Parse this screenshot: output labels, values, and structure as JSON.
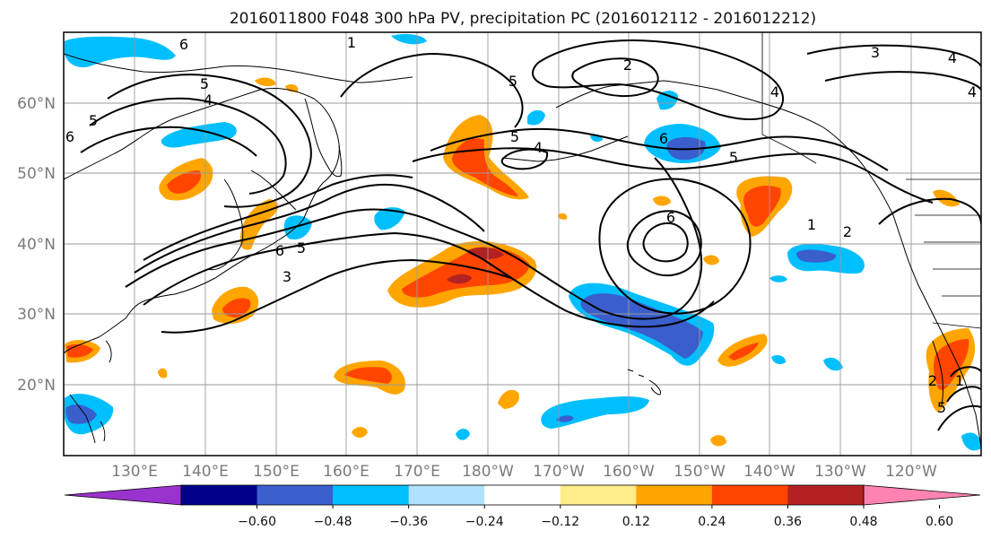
{
  "title": "2016011800 F048 300 hPa PV, precipitation PC (2016012112 - 2016012212)",
  "lat_labels": [
    "60°N",
    "50°N",
    "40°N",
    "30°N",
    "20°N"
  ],
  "lon_labels": [
    "130°E",
    "140°E",
    "150°E",
    "160°E",
    "170°E",
    "180°W",
    "170°W",
    "160°W",
    "150°W",
    "140°W",
    "130°W",
    "120°W"
  ],
  "colorbar": {
    "colors": [
      "#9a32cd",
      "#00008b",
      "#3a5fcd",
      "#00bfff",
      "#b0e2ff",
      "#ffffff",
      "#ffec8b",
      "#ffa500",
      "#ff4500",
      "#b22222",
      "#ff83b0"
    ],
    "labels": [
      "−0.60",
      "−0.48",
      "−0.36",
      "−0.24",
      "−0.12",
      "0.12",
      "0.24",
      "0.36",
      "0.48",
      "0.60"
    ]
  },
  "contour_labels": [
    {
      "text": "6"
    },
    {
      "text": "5"
    },
    {
      "text": "4"
    },
    {
      "text": "5"
    },
    {
      "text": "6"
    },
    {
      "text": "1"
    },
    {
      "text": "5"
    },
    {
      "text": "2"
    },
    {
      "text": "5"
    },
    {
      "text": "4"
    },
    {
      "text": "6"
    },
    {
      "text": "5"
    },
    {
      "text": "6"
    },
    {
      "text": "5"
    },
    {
      "text": "3"
    },
    {
      "text": "6"
    },
    {
      "text": "4"
    },
    {
      "text": "3"
    },
    {
      "text": "4"
    },
    {
      "text": "4"
    },
    {
      "text": "1"
    },
    {
      "text": "2"
    },
    {
      "text": "1"
    },
    {
      "text": "2"
    },
    {
      "text": "5"
    }
  ]
}
